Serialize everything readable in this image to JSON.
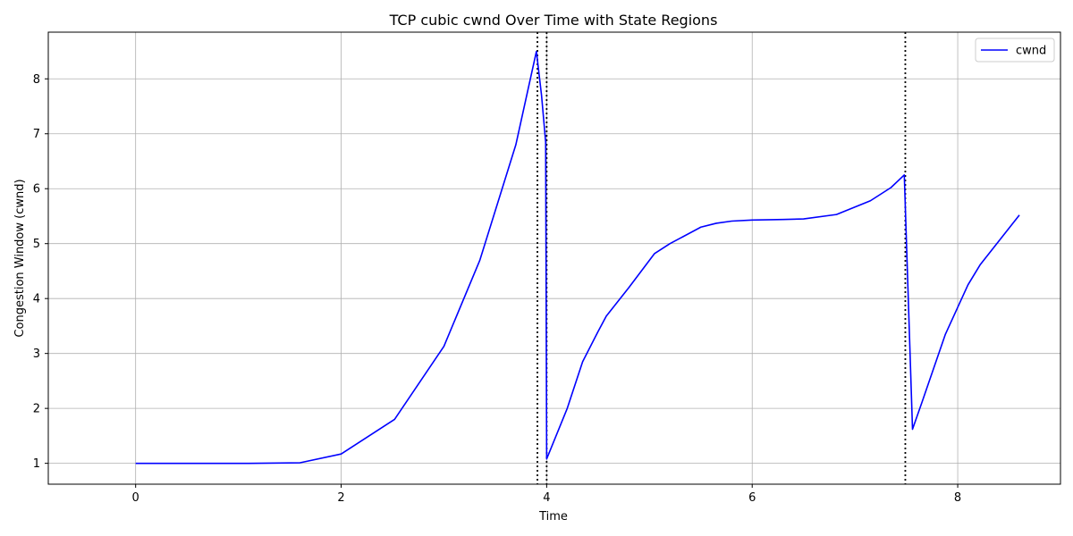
{
  "chart_data": {
    "type": "line",
    "title": "TCP cubic cwnd Over Time with State Regions",
    "xlabel": "Time",
    "ylabel": "Congestion Window (cwnd)",
    "xlim": [
      -0.85,
      9.0
    ],
    "ylim": [
      0.62,
      8.85
    ],
    "xticks": [
      0,
      2,
      4,
      6,
      8
    ],
    "yticks": [
      1,
      2,
      3,
      4,
      5,
      6,
      7,
      8
    ],
    "grid": true,
    "legend": {
      "placement": "top-right"
    },
    "series": [
      {
        "name": "cwnd",
        "color": "#0000ff",
        "points": [
          [
            0.0,
            1.0
          ],
          [
            0.5,
            1.0
          ],
          [
            1.1,
            1.0
          ],
          [
            1.6,
            1.01
          ],
          [
            2.0,
            1.17
          ],
          [
            2.52,
            1.8
          ],
          [
            3.0,
            3.13
          ],
          [
            3.35,
            4.7
          ],
          [
            3.7,
            6.8
          ],
          [
            3.9,
            8.5
          ],
          [
            3.95,
            7.7
          ],
          [
            3.99,
            6.85
          ],
          [
            4.0,
            1.08
          ],
          [
            4.2,
            2.0
          ],
          [
            4.35,
            2.85
          ],
          [
            4.5,
            3.4
          ],
          [
            4.58,
            3.68
          ],
          [
            4.8,
            4.2
          ],
          [
            5.05,
            4.82
          ],
          [
            5.2,
            5.0
          ],
          [
            5.5,
            5.3
          ],
          [
            5.65,
            5.37
          ],
          [
            5.8,
            5.41
          ],
          [
            6.0,
            5.43
          ],
          [
            6.3,
            5.44
          ],
          [
            6.5,
            5.45
          ],
          [
            6.82,
            5.53
          ],
          [
            7.15,
            5.78
          ],
          [
            7.35,
            6.02
          ],
          [
            7.48,
            6.25
          ],
          [
            7.56,
            1.62
          ],
          [
            7.65,
            2.1
          ],
          [
            7.88,
            3.35
          ],
          [
            8.1,
            4.25
          ],
          [
            8.22,
            4.62
          ],
          [
            8.6,
            5.52
          ]
        ]
      }
    ],
    "vlines": {
      "color": "#000000",
      "style": "dotted",
      "x": [
        3.91,
        4.0,
        7.49
      ]
    }
  }
}
